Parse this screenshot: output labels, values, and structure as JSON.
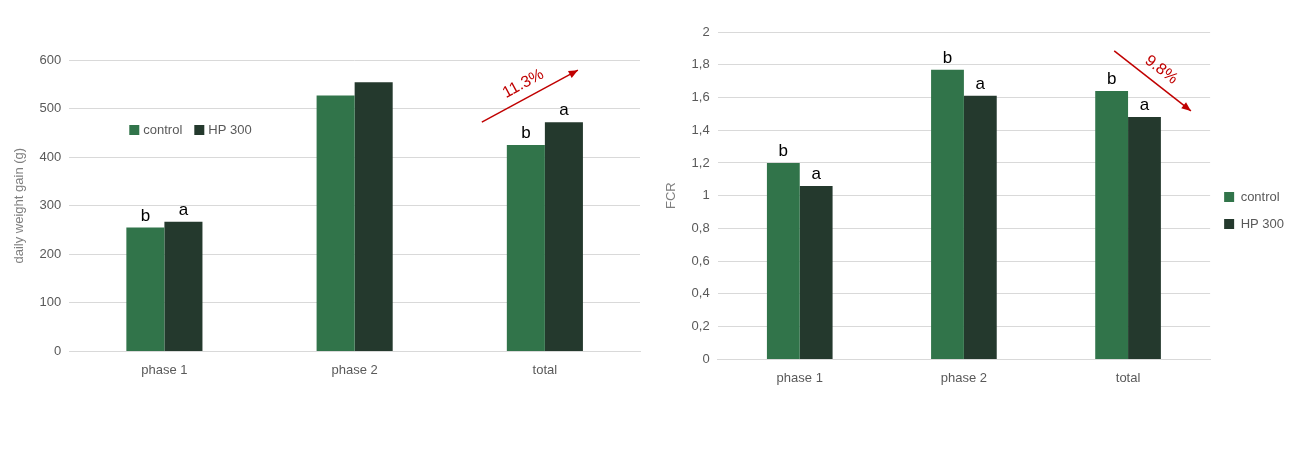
{
  "chart_data": [
    {
      "type": "bar",
      "y_label": "daily weight gain (g)",
      "categories": [
        "phase 1",
        "phase 2",
        "total"
      ],
      "series": [
        {
          "name": "control",
          "color": "#31744a",
          "values": [
            255,
            527,
            425
          ],
          "letters": [
            "b",
            null,
            "b"
          ]
        },
        {
          "name": "HP 300",
          "color": "#24392d",
          "values": [
            267,
            554,
            472
          ],
          "letters": [
            "a",
            null,
            "a"
          ]
        }
      ],
      "ylim": [
        0,
        600
      ],
      "yticks": [
        0,
        100,
        200,
        300,
        400,
        500,
        600
      ],
      "grid": true,
      "legend": "upper left",
      "annotations": [
        "11.3%"
      ]
    },
    {
      "type": "bar",
      "y_label": "FCR",
      "categories": [
        "phase 1",
        "phase 2",
        "total"
      ],
      "series": [
        {
          "name": "control",
          "color": "#31744a",
          "values": [
            1.2,
            1.77,
            1.64
          ],
          "letters": [
            "b",
            "b",
            "b"
          ]
        },
        {
          "name": "HP 300",
          "color": "#24392d",
          "values": [
            1.06,
            1.61,
            1.48
          ],
          "letters": [
            "a",
            "a",
            "a"
          ]
        }
      ],
      "ylim": [
        0,
        2
      ],
      "yticks": [
        0,
        {
          "value": 0.2,
          "label": "0,2"
        },
        {
          "value": 0.4,
          "label": "0,4"
        },
        {
          "value": 0.6,
          "label": "0,6"
        },
        {
          "value": 0.8,
          "label": "0,8"
        },
        1,
        {
          "value": 1.2,
          "label": "1,2"
        },
        {
          "value": 1.4,
          "label": "1,4"
        },
        {
          "value": 1.6,
          "label": "1,6"
        },
        {
          "value": 1.8,
          "label": "1,8"
        },
        2
      ],
      "grid": true,
      "legend": "right",
      "annotations": [
        "9.8%"
      ]
    }
  ]
}
